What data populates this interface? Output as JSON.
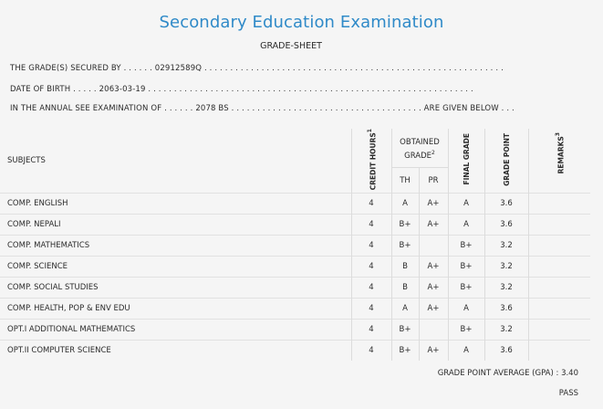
{
  "header": {
    "title": "Secondary Education Examination",
    "subtitle": "GRADE-SHEET"
  },
  "student": {
    "symbol_line": "THE GRADE(S) SECURED BY . . . . . . 02912589Q . . . . . . . . . . . . . . . . . . . . . . . . . . . . . . . . . . . . . . . . . . . . . . . . . . . . . . . . . .",
    "dob_line": "DATE OF BIRTH . . . . . 2063-03-19 . . . . . . . . . . . . . . . . . . . . . . . . . . . . . . . . . . . . . . . . . . . . . . . . . . . . . . . . . . . . . . .",
    "exam_line": "IN THE ANNUAL SEE EXAMINATION OF . . . . . . 2078 BS . . . . . . . . . . . . . . . . . . . . . . . . . . . . . . . . . . . . . ARE GIVEN BELOW . . ."
  },
  "table": {
    "col_subjects": "SUBJECTS",
    "col_credit": "CREDIT HOURS",
    "col_credit_sup": "1",
    "col_obtained": "OBTAINED GRADE",
    "col_obtained_sup": "2",
    "col_th": "TH",
    "col_pr": "PR",
    "col_final": "FINAL GRADE",
    "col_gp": "GRADE POINT",
    "col_remarks": "REMARKS",
    "col_remarks_sup": "3",
    "rows": [
      {
        "subject": "COMP. ENGLISH",
        "credit": "4",
        "th": "A",
        "pr": "A+",
        "final": "A",
        "gp": "3.6",
        "remarks": ""
      },
      {
        "subject": "COMP. NEPALI",
        "credit": "4",
        "th": "B+",
        "pr": "A+",
        "final": "A",
        "gp": "3.6",
        "remarks": ""
      },
      {
        "subject": "COMP. MATHEMATICS",
        "credit": "4",
        "th": "B+",
        "pr": "",
        "final": "B+",
        "gp": "3.2",
        "remarks": ""
      },
      {
        "subject": "COMP. SCIENCE",
        "credit": "4",
        "th": "B",
        "pr": "A+",
        "final": "B+",
        "gp": "3.2",
        "remarks": ""
      },
      {
        "subject": "COMP. SOCIAL STUDIES",
        "credit": "4",
        "th": "B",
        "pr": "A+",
        "final": "B+",
        "gp": "3.2",
        "remarks": ""
      },
      {
        "subject": "COMP. HEALTH, POP & ENV EDU",
        "credit": "4",
        "th": "A",
        "pr": "A+",
        "final": "A",
        "gp": "3.6",
        "remarks": ""
      },
      {
        "subject": "OPT.I ADDITIONAL MATHEMATICS",
        "credit": "4",
        "th": "B+",
        "pr": "",
        "final": "B+",
        "gp": "3.2",
        "remarks": ""
      },
      {
        "subject": "OPT.II COMPUTER SCIENCE",
        "credit": "4",
        "th": "B+",
        "pr": "A+",
        "final": "A",
        "gp": "3.6",
        "remarks": ""
      }
    ]
  },
  "summary": {
    "gpa_line": "GRADE POINT AVERAGE (GPA) : 3.40",
    "result": "PASS"
  }
}
